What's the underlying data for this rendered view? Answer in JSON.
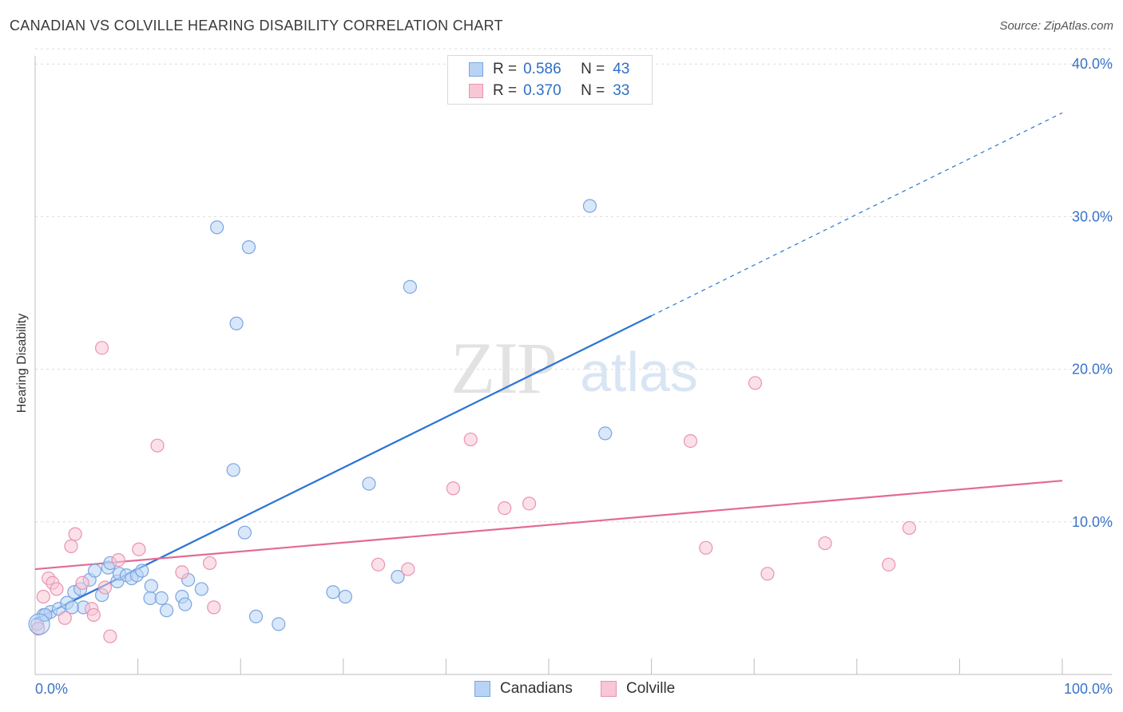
{
  "header": {
    "title": "CANADIAN VS COLVILLE HEARING DISABILITY CORRELATION CHART",
    "source": "Source: ZipAtlas.com"
  },
  "watermark": {
    "zip": "ZIP",
    "atlas": "atlas"
  },
  "legend": {
    "r_label": "R =",
    "n_label": "N =",
    "series": [
      {
        "name": "Canadians",
        "r": "0.586",
        "n": "43",
        "fill": "#b9d3f5",
        "stroke": "#7aa6e0"
      },
      {
        "name": "Colville",
        "r": "0.370",
        "n": "33",
        "fill": "#f8c6d5",
        "stroke": "#e993b0"
      }
    ]
  },
  "chart_data": {
    "type": "scatter",
    "title": "CANADIAN VS COLVILLE HEARING DISABILITY CORRELATION CHART",
    "xlabel": "",
    "ylabel": "Hearing Disability",
    "xlim": [
      0,
      100
    ],
    "ylim": [
      0,
      42
    ],
    "x_tick_labels": [
      "0.0%",
      "100.0%"
    ],
    "y_ticks": [
      10,
      20,
      30,
      40
    ],
    "y_tick_labels": [
      "10.0%",
      "20.0%",
      "30.0%",
      "40.0%"
    ],
    "grid": true,
    "series": [
      {
        "name": "Canadians",
        "color": "#7aa6e0",
        "line_color": "#2b74d4",
        "trend": {
          "x0": 0,
          "y0": 3.6,
          "x1": 60,
          "y1": 23.5,
          "dashed_to_x": 100,
          "dashed_to_y": 36.8
        },
        "points": [
          [
            0.2,
            3.3
          ],
          [
            0.8,
            3.9
          ],
          [
            1.5,
            4.1
          ],
          [
            2.3,
            4.3
          ],
          [
            3.1,
            4.7
          ],
          [
            3.8,
            5.4
          ],
          [
            4.4,
            5.6
          ],
          [
            4.7,
            4.4
          ],
          [
            5.3,
            6.2
          ],
          [
            5.8,
            6.8
          ],
          [
            6.5,
            5.2
          ],
          [
            7.1,
            7.0
          ],
          [
            7.3,
            7.3
          ],
          [
            8.0,
            6.1
          ],
          [
            8.2,
            6.6
          ],
          [
            8.9,
            6.5
          ],
          [
            9.4,
            6.3
          ],
          [
            9.9,
            6.5
          ],
          [
            10.4,
            6.8
          ],
          [
            11.2,
            5.0
          ],
          [
            11.3,
            5.8
          ],
          [
            12.3,
            5.0
          ],
          [
            12.8,
            4.2
          ],
          [
            14.3,
            5.1
          ],
          [
            14.6,
            4.6
          ],
          [
            14.9,
            6.2
          ],
          [
            16.2,
            5.6
          ],
          [
            17.7,
            29.3
          ],
          [
            19.3,
            13.4
          ],
          [
            19.6,
            23.0
          ],
          [
            20.4,
            9.3
          ],
          [
            20.8,
            28.0
          ],
          [
            21.5,
            3.8
          ],
          [
            23.7,
            3.3
          ],
          [
            29.0,
            5.4
          ],
          [
            30.2,
            5.1
          ],
          [
            32.5,
            12.5
          ],
          [
            35.3,
            6.4
          ],
          [
            36.5,
            25.4
          ],
          [
            54.0,
            30.7
          ],
          [
            55.5,
            15.8
          ],
          [
            1.0,
            3.9
          ],
          [
            3.6,
            4.4
          ]
        ]
      },
      {
        "name": "Colville",
        "color": "#e993b0",
        "line_color": "#e46a96",
        "trend": {
          "x0": 0,
          "y0": 6.9,
          "x1": 100,
          "y1": 12.7
        },
        "points": [
          [
            0.3,
            3.0
          ],
          [
            0.8,
            5.1
          ],
          [
            1.3,
            6.3
          ],
          [
            1.7,
            6.0
          ],
          [
            2.1,
            5.6
          ],
          [
            2.9,
            3.7
          ],
          [
            3.5,
            8.4
          ],
          [
            3.9,
            9.2
          ],
          [
            4.6,
            6.0
          ],
          [
            5.5,
            4.3
          ],
          [
            5.7,
            3.9
          ],
          [
            6.5,
            21.4
          ],
          [
            6.8,
            5.7
          ],
          [
            7.3,
            2.5
          ],
          [
            8.1,
            7.5
          ],
          [
            10.1,
            8.2
          ],
          [
            11.9,
            15.0
          ],
          [
            14.3,
            6.7
          ],
          [
            17.0,
            7.3
          ],
          [
            17.4,
            4.4
          ],
          [
            33.4,
            7.2
          ],
          [
            36.3,
            6.9
          ],
          [
            40.7,
            12.2
          ],
          [
            42.4,
            15.4
          ],
          [
            45.7,
            10.9
          ],
          [
            48.1,
            11.2
          ],
          [
            63.8,
            15.3
          ],
          [
            65.3,
            8.3
          ],
          [
            70.1,
            19.1
          ],
          [
            71.3,
            6.6
          ],
          [
            76.9,
            8.6
          ],
          [
            83.1,
            7.2
          ],
          [
            85.1,
            9.6
          ]
        ]
      }
    ]
  }
}
